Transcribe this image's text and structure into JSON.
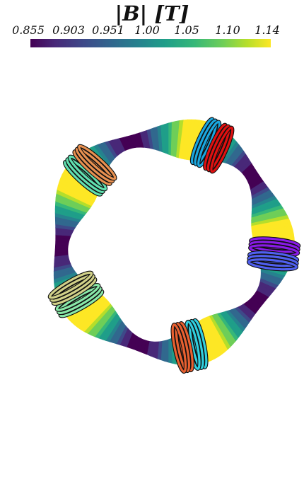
{
  "colorbar": {
    "title": "|B|  [T]",
    "tick_labels": [
      "0.855",
      "0.903",
      "0.951",
      "1.00",
      "1.05",
      "1.10",
      "1.14"
    ],
    "colormap": "viridis"
  },
  "scene": {
    "coil_groups": [
      {
        "colors": [
          "#1aa7e0",
          "#e01010"
        ]
      },
      {
        "colors": [
          "#8a1ae8",
          "#5060f0"
        ]
      },
      {
        "colors": [
          "#30d0e0",
          "#e86030"
        ]
      },
      {
        "colors": [
          "#88e8a8",
          "#d0d088"
        ]
      },
      {
        "colors": [
          "#60e0b0",
          "#e89050"
        ]
      }
    ]
  }
}
